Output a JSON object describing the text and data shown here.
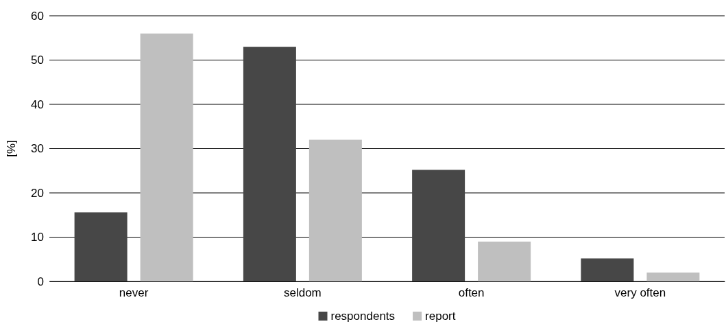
{
  "chart_data": {
    "type": "bar",
    "ylabel": "[%]",
    "categories": [
      "never",
      "seldom",
      "often",
      "very often"
    ],
    "series": [
      {
        "name": "respondents",
        "color": "#474747",
        "values": [
          15.6,
          53,
          25.2,
          5.2
        ]
      },
      {
        "name": "report",
        "color": "#bfbfbf",
        "values": [
          56,
          32,
          9,
          2
        ]
      }
    ],
    "ylim": [
      0,
      60
    ],
    "yticks": [
      0,
      10,
      20,
      30,
      40,
      50,
      60
    ],
    "grid": "y",
    "legend": "bottom"
  }
}
